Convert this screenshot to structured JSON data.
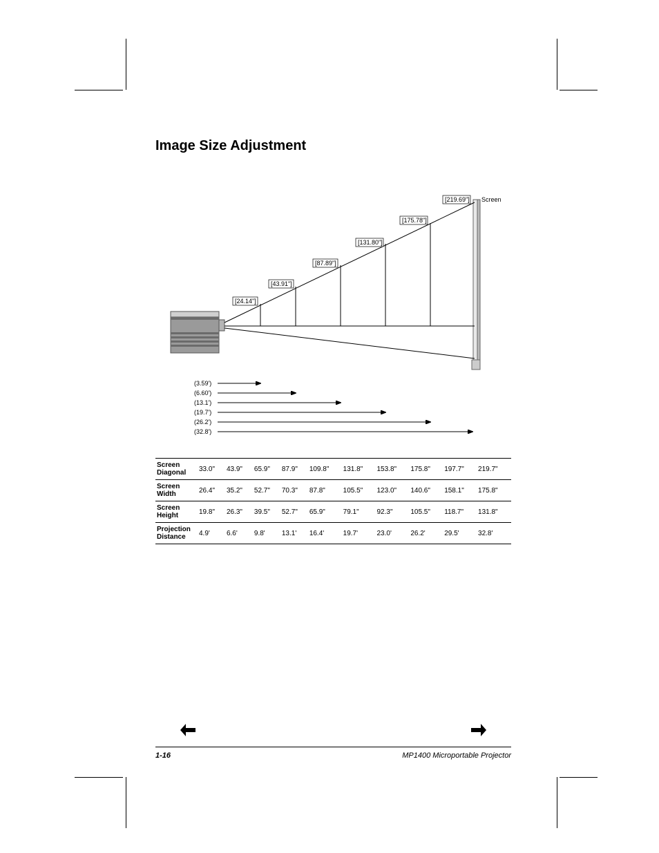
{
  "title": "Image Size Adjustment",
  "diagram": {
    "screen_label": "Screen",
    "heights": [
      "[219.69\"]",
      "[175.78\"]",
      "[131.80\"]",
      "[87.89\"]",
      "[43.91\"]",
      "[24.14\"]"
    ],
    "distances": [
      "(3.59')",
      "(6.60')",
      "(13.1')",
      "(19.7')",
      "(26.2')",
      "(32.8')"
    ],
    "colors": {
      "line": "#000000",
      "projector_fill": "#9a9a9a",
      "projector_dark": "#6b6b6b",
      "projector_light": "#d0d0d0",
      "screen_fill": "#f0f0f0"
    }
  },
  "table": {
    "headers": [
      "Screen Diagonal",
      "Screen Width",
      "Screen Height",
      "Projection Distance"
    ],
    "rows": [
      [
        "33.0\"",
        "43.9\"",
        "65.9\"",
        "87.9\"",
        "109.8\"",
        "131.8\"",
        "153.8\"",
        "175.8\"",
        "197.7\"",
        "219.7\""
      ],
      [
        "26.4\"",
        "35.2\"",
        "52.7\"",
        "70.3\"",
        "87.8\"",
        "105.5\"",
        "123.0\"",
        "140.6\"",
        "158.1\"",
        "175.8\""
      ],
      [
        "19.8\"",
        "26.3\"",
        "39.5\"",
        "52.7\"",
        "65.9\"",
        "79.1\"",
        "92.3\"",
        "105.5\"",
        "118.7\"",
        "131.8\""
      ],
      [
        "4.9'",
        "6.6'",
        "9.8'",
        "13.1'",
        "16.4'",
        "19.7'",
        "23.0'",
        "26.2'",
        "29.5'",
        "32.8'"
      ]
    ]
  },
  "nav": {
    "prev": "←",
    "next": "→"
  },
  "footer": {
    "page": "1-16",
    "product": "MP1400 Microportable Projector"
  }
}
